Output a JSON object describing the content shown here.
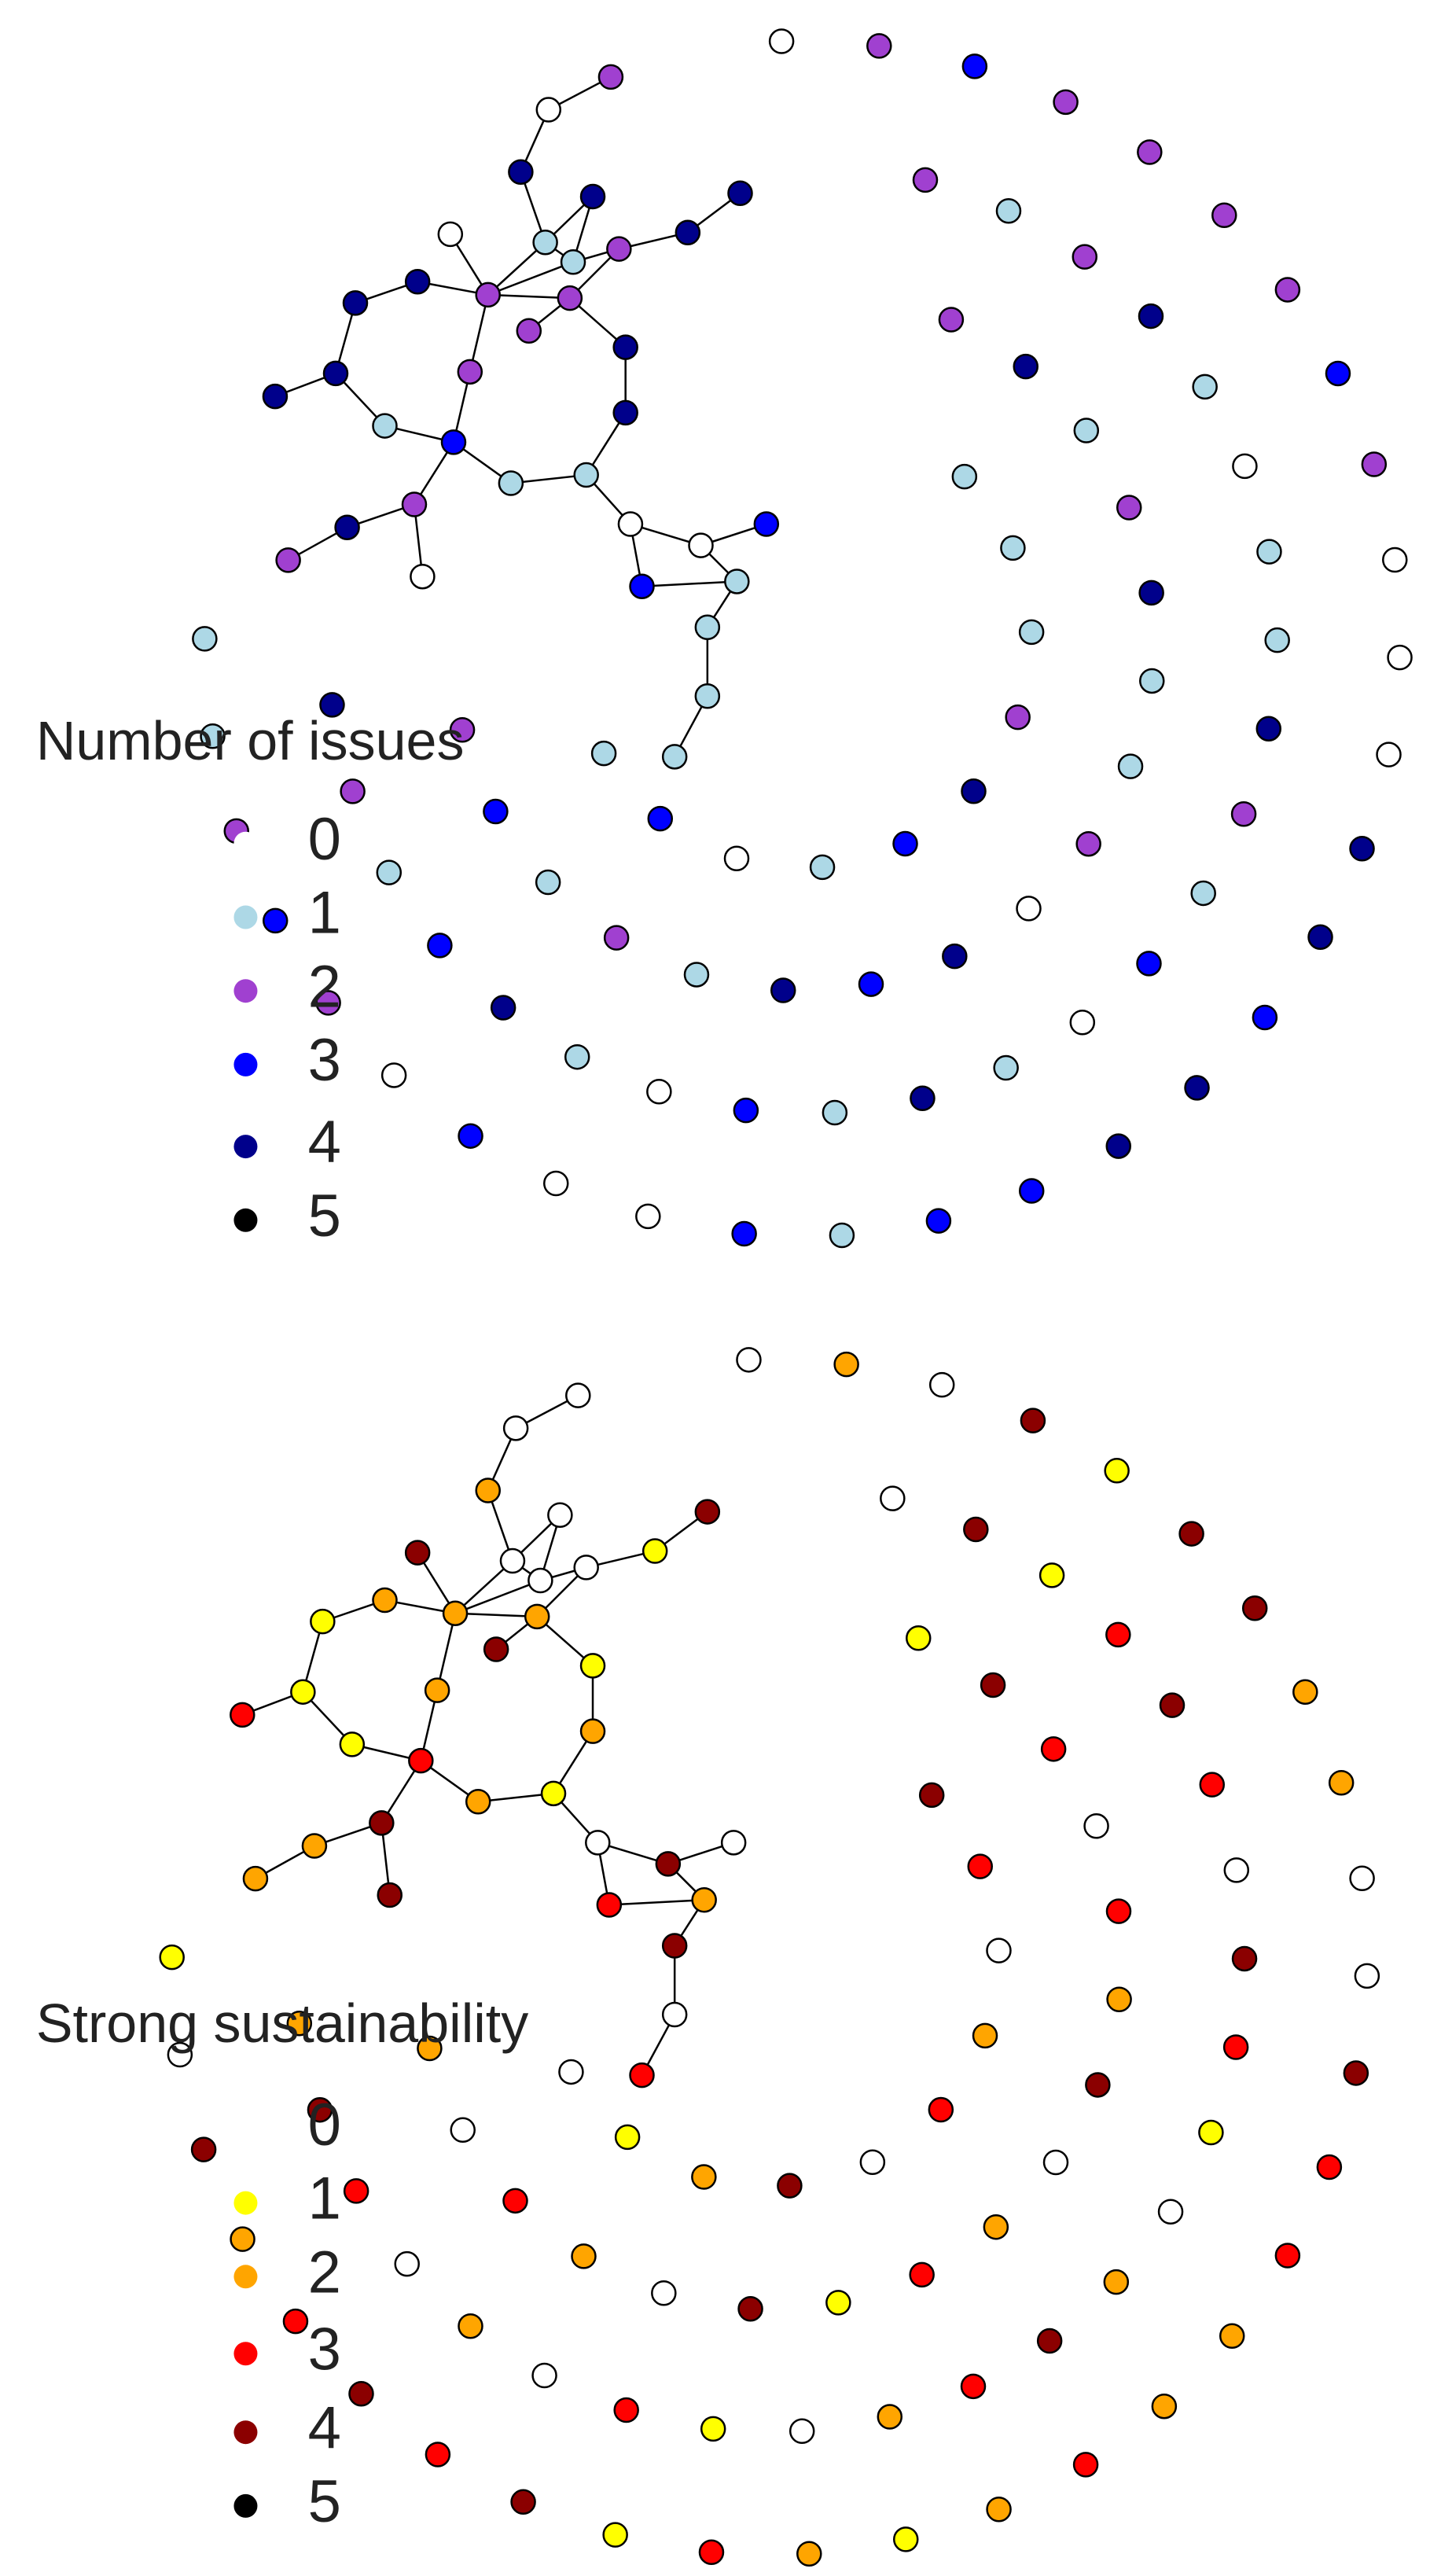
{
  "panels": [
    {
      "legend": {
        "title": "Number of issues",
        "items": [
          {
            "label": "0",
            "color": "#ffffff"
          },
          {
            "label": "1",
            "color": "#add8e6"
          },
          {
            "label": "2",
            "color": "#a040d0"
          },
          {
            "label": "3",
            "color": "#0000ff"
          },
          {
            "label": "4",
            "color": "#00008b"
          },
          {
            "label": "5",
            "color": "#000000"
          }
        ]
      },
      "cluster_levels": [
        2,
        0,
        4,
        4,
        4,
        4,
        2,
        1,
        1,
        0,
        4,
        2,
        2,
        2,
        4,
        4,
        4,
        2,
        4,
        4,
        1,
        3,
        1,
        1,
        2,
        4,
        2,
        0,
        0,
        0,
        3,
        3,
        1,
        1,
        1,
        1
      ],
      "ring_levels": [
        0,
        2,
        3,
        2,
        2,
        2,
        2,
        3,
        2,
        0,
        0,
        0,
        4,
        4,
        3,
        4,
        4,
        3,
        3,
        1,
        3,
        0,
        0,
        3,
        0,
        2,
        3,
        2,
        1,
        1,
        2,
        1,
        2,
        4,
        1,
        0,
        1,
        1,
        4,
        2,
        1,
        3,
        0,
        1,
        4,
        1,
        3,
        0,
        1,
        4,
        3,
        1,
        2,
        4,
        2,
        4,
        1,
        2,
        4,
        1,
        1,
        2,
        0,
        4,
        3,
        4,
        1,
        2,
        1,
        3,
        2,
        1,
        1,
        1,
        2,
        4,
        3,
        1,
        0,
        3,
        1
      ]
    },
    {
      "legend": {
        "title": "Strong sustainability",
        "items": [
          {
            "label": "0",
            "color": "#ffffff"
          },
          {
            "label": "1",
            "color": "#ffff00"
          },
          {
            "label": "2",
            "color": "#ffa500"
          },
          {
            "label": "3",
            "color": "#ff0000"
          },
          {
            "label": "4",
            "color": "#8b0000"
          },
          {
            "label": "5",
            "color": "#000000"
          }
        ]
      },
      "cluster_levels": [
        0,
        0,
        2,
        0,
        4,
        1,
        0,
        0,
        0,
        4,
        2,
        2,
        2,
        4,
        1,
        1,
        3,
        2,
        1,
        2,
        1,
        3,
        2,
        1,
        4,
        2,
        2,
        4,
        0,
        4,
        0,
        3,
        2,
        4,
        0,
        3
      ],
      "ring_levels": [
        0,
        2,
        0,
        4,
        1,
        4,
        4,
        2,
        2,
        0,
        0,
        4,
        3,
        3,
        2,
        2,
        3,
        2,
        1,
        2,
        3,
        1,
        4,
        3,
        4,
        3,
        2,
        4,
        0,
        1,
        0,
        4,
        1,
        3,
        4,
        3,
        0,
        4,
        3,
        1,
        0,
        2,
        4,
        3,
        2,
        0,
        1,
        3,
        0,
        2,
        0,
        3,
        4,
        2,
        1,
        4,
        3,
        0,
        3,
        2,
        4,
        0,
        2,
        3,
        1,
        4,
        0,
        2,
        3,
        0,
        2,
        4,
        3,
        0,
        2,
        3,
        0,
        4,
        2,
        1,
        0
      ]
    }
  ]
}
